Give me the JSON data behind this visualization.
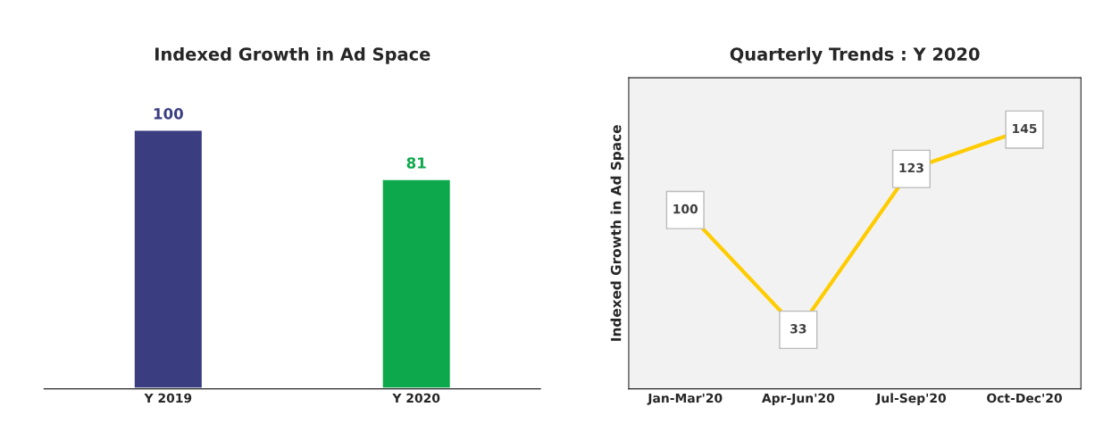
{
  "chart_data": [
    {
      "type": "bar",
      "title": "Indexed Growth in Ad Space",
      "categories": [
        "Y 2019",
        "Y 2020"
      ],
      "values": [
        100,
        81
      ],
      "colors": [
        "#3a3d80",
        "#0da84c"
      ],
      "data_labels": true
    },
    {
      "type": "line",
      "title": "Quarterly Trends : Y 2020",
      "ylabel": "Indexed Growth in Ad Space",
      "categories": [
        "Jan-Mar'20",
        "Apr-Jun'20",
        "Jul-Sep'20",
        "Oct-Dec'20"
      ],
      "series": [
        {
          "color": "#ffcc00",
          "marker": "square",
          "values": [
            100,
            33,
            123,
            145
          ]
        }
      ],
      "data_labels": true
    }
  ]
}
